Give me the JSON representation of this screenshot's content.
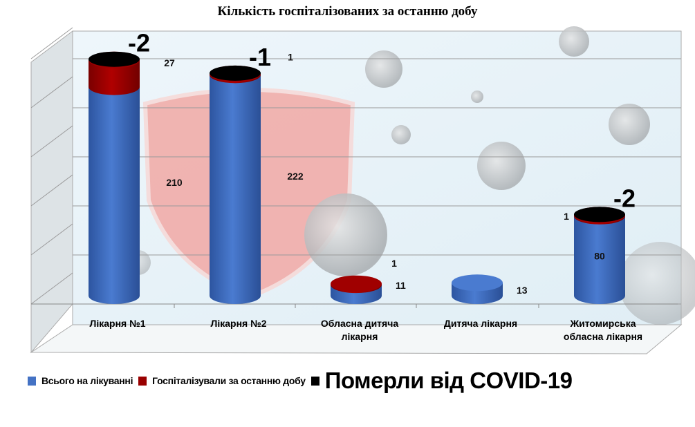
{
  "chart_data": {
    "type": "bar",
    "style": "3d-stacked-cylinder",
    "title": "Кількість госпіталізованих за останню добу",
    "categories": [
      [
        "Лікарня №1"
      ],
      [
        "Лікарня №2"
      ],
      [
        "Обласна дитяча",
        "лікарня"
      ],
      [
        "Дитяча лікарня"
      ],
      [
        "Житомирська",
        "обласна лікарня"
      ]
    ],
    "series": [
      {
        "name": "Всього на лікуванні",
        "color": "#4472C4",
        "values": [
          210,
          222,
          11,
          13,
          80
        ]
      },
      {
        "name": "Госпіталізували за останню добу",
        "color": "#990000",
        "values": [
          27,
          1,
          1,
          null,
          1
        ]
      },
      {
        "name": "Померли від COVID-19",
        "color": "#000000",
        "values": [
          -2,
          -1,
          null,
          null,
          -2
        ]
      }
    ],
    "grid": true,
    "legend": "bottom"
  }
}
